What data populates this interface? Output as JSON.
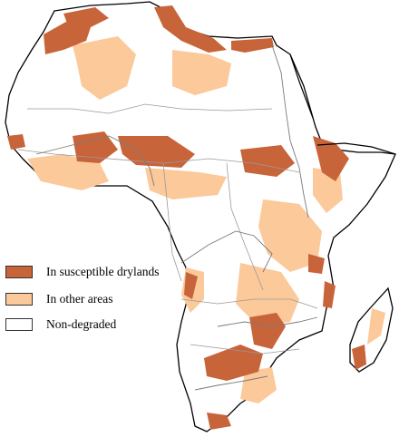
{
  "legend": {
    "items": [
      {
        "label": "In susceptible drylands",
        "color": "#c8643a"
      },
      {
        "label": " In other areas",
        "color": "#fbc99a"
      },
      {
        "label": "Non-degraded",
        "color": "#ffffff"
      }
    ]
  },
  "colors": {
    "outline": "#000000",
    "river": "#7a7a7a",
    "border": "#9a9a9a"
  }
}
